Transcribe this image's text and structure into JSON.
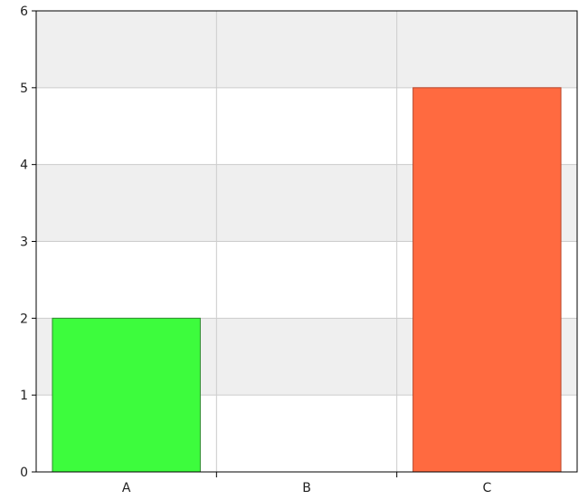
{
  "chart_data": {
    "type": "bar",
    "categories": [
      "A",
      "B",
      "C"
    ],
    "values": [
      2,
      0,
      5
    ],
    "ylim": [
      0,
      6
    ],
    "yticks": [
      0,
      1,
      2,
      3,
      4,
      5,
      6
    ],
    "ytick_labels": [
      "0",
      "1",
      "2",
      "3",
      "4",
      "5",
      "6"
    ],
    "title": "",
    "xlabel": "",
    "ylabel": "",
    "grid": true,
    "legend": "none",
    "colors": {
      "bars": [
        "#3dfc3d",
        "#3dfc3d",
        "#ff6a40"
      ],
      "bar_stroke": [
        "#2c8a2c",
        "#2c8a2c",
        "#b8462a"
      ],
      "band": "#efefef",
      "gridline": "#cccccc",
      "axis": "#000000"
    }
  }
}
